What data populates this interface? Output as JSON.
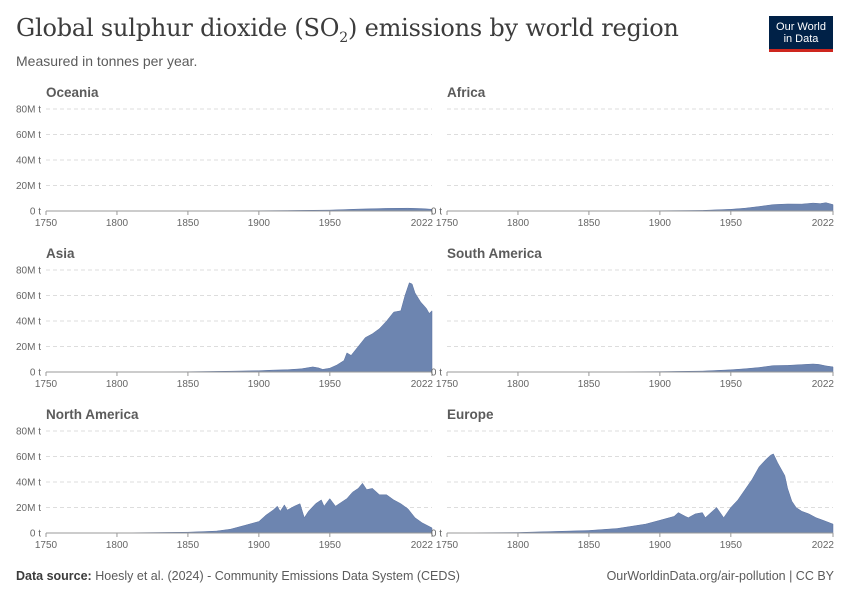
{
  "header": {
    "title_main": "Global sulphur dioxide (SO",
    "title_sub": "2",
    "title_end": ") emissions by world region",
    "subtitle": "Measured in tonnes per year.",
    "logo_line1": "Our World",
    "logo_line2": "in Data"
  },
  "footer": {
    "source_label": "Data source:",
    "source_text": "Hoesly et al. (2024) - Community Emissions Data System (CEDS)",
    "credit": "OurWorldinData.org/air-pollution | CC BY"
  },
  "chart_data": {
    "type": "area",
    "layout": "small-multiples",
    "x_ticks": [
      "1750",
      "1800",
      "1850",
      "1900",
      "1950",
      "2022"
    ],
    "y_ticks": [
      "0 t",
      "20M t",
      "40M t",
      "60M t",
      "80M t"
    ],
    "xlim": [
      1750,
      2022
    ],
    "ylim": [
      0,
      80000000
    ],
    "unit": "tonnes",
    "series": [
      {
        "name": "Oceania",
        "points": [
          [
            1750,
            0
          ],
          [
            1850,
            50000
          ],
          [
            1900,
            200000
          ],
          [
            1920,
            400000
          ],
          [
            1950,
            700000
          ],
          [
            1970,
            1500000
          ],
          [
            1990,
            2000000
          ],
          [
            2005,
            2200000
          ],
          [
            2015,
            1900000
          ],
          [
            2022,
            1300000
          ]
        ]
      },
      {
        "name": "Africa",
        "points": [
          [
            1750,
            0
          ],
          [
            1850,
            100000
          ],
          [
            1900,
            250000
          ],
          [
            1930,
            500000
          ],
          [
            1950,
            1300000
          ],
          [
            1960,
            2200000
          ],
          [
            1970,
            3500000
          ],
          [
            1980,
            5000000
          ],
          [
            1990,
            5500000
          ],
          [
            2000,
            5400000
          ],
          [
            2008,
            6200000
          ],
          [
            2013,
            5800000
          ],
          [
            2017,
            6500000
          ],
          [
            2022,
            5000000
          ]
        ]
      },
      {
        "name": "Asia",
        "points": [
          [
            1750,
            0
          ],
          [
            1850,
            200000
          ],
          [
            1880,
            600000
          ],
          [
            1900,
            1000000
          ],
          [
            1910,
            1500000
          ],
          [
            1920,
            1800000
          ],
          [
            1930,
            2500000
          ],
          [
            1938,
            4000000
          ],
          [
            1942,
            3200000
          ],
          [
            1945,
            2000000
          ],
          [
            1950,
            3000000
          ],
          [
            1955,
            5500000
          ],
          [
            1960,
            9000000
          ],
          [
            1962,
            15000000
          ],
          [
            1965,
            13000000
          ],
          [
            1970,
            20000000
          ],
          [
            1975,
            27000000
          ],
          [
            1980,
            30000000
          ],
          [
            1985,
            34000000
          ],
          [
            1990,
            40000000
          ],
          [
            1995,
            47000000
          ],
          [
            2000,
            48000000
          ],
          [
            2003,
            60000000
          ],
          [
            2006,
            70000000
          ],
          [
            2008,
            69000000
          ],
          [
            2010,
            62000000
          ],
          [
            2014,
            55000000
          ],
          [
            2018,
            50000000
          ],
          [
            2020,
            46000000
          ],
          [
            2022,
            48000000
          ]
        ]
      },
      {
        "name": "South America",
        "points": [
          [
            1750,
            0
          ],
          [
            1850,
            50000
          ],
          [
            1900,
            300000
          ],
          [
            1930,
            700000
          ],
          [
            1950,
            1700000
          ],
          [
            1960,
            2500000
          ],
          [
            1970,
            3500000
          ],
          [
            1980,
            5000000
          ],
          [
            1990,
            5200000
          ],
          [
            2000,
            5800000
          ],
          [
            2008,
            6300000
          ],
          [
            2012,
            6000000
          ],
          [
            2017,
            4800000
          ],
          [
            2022,
            4000000
          ]
        ]
      },
      {
        "name": "North America",
        "points": [
          [
            1750,
            0
          ],
          [
            1800,
            50000
          ],
          [
            1850,
            600000
          ],
          [
            1870,
            1500000
          ],
          [
            1880,
            3000000
          ],
          [
            1890,
            6000000
          ],
          [
            1900,
            9000000
          ],
          [
            1905,
            14000000
          ],
          [
            1910,
            18000000
          ],
          [
            1913,
            21000000
          ],
          [
            1915,
            17000000
          ],
          [
            1918,
            22000000
          ],
          [
            1920,
            18000000
          ],
          [
            1925,
            21000000
          ],
          [
            1929,
            23000000
          ],
          [
            1932,
            12000000
          ],
          [
            1935,
            17000000
          ],
          [
            1940,
            23000000
          ],
          [
            1944,
            26000000
          ],
          [
            1946,
            21000000
          ],
          [
            1950,
            27000000
          ],
          [
            1954,
            21000000
          ],
          [
            1958,
            24000000
          ],
          [
            1962,
            27000000
          ],
          [
            1966,
            32000000
          ],
          [
            1970,
            35000000
          ],
          [
            1973,
            39000000
          ],
          [
            1976,
            34000000
          ],
          [
            1980,
            35000000
          ],
          [
            1985,
            30000000
          ],
          [
            1990,
            30000000
          ],
          [
            1995,
            26000000
          ],
          [
            2000,
            23000000
          ],
          [
            2005,
            19000000
          ],
          [
            2010,
            12000000
          ],
          [
            2015,
            8000000
          ],
          [
            2022,
            4000000
          ]
        ]
      },
      {
        "name": "Europe",
        "points": [
          [
            1750,
            100000
          ],
          [
            1800,
            400000
          ],
          [
            1850,
            2000000
          ],
          [
            1870,
            3500000
          ],
          [
            1890,
            7000000
          ],
          [
            1900,
            10000000
          ],
          [
            1910,
            13000000
          ],
          [
            1913,
            16000000
          ],
          [
            1918,
            13000000
          ],
          [
            1920,
            12000000
          ],
          [
            1925,
            15000000
          ],
          [
            1930,
            16000000
          ],
          [
            1932,
            12000000
          ],
          [
            1935,
            15000000
          ],
          [
            1940,
            20000000
          ],
          [
            1945,
            12000000
          ],
          [
            1950,
            20000000
          ],
          [
            1955,
            26000000
          ],
          [
            1960,
            34000000
          ],
          [
            1965,
            42000000
          ],
          [
            1970,
            52000000
          ],
          [
            1975,
            58000000
          ],
          [
            1978,
            61000000
          ],
          [
            1980,
            62000000
          ],
          [
            1983,
            55000000
          ],
          [
            1988,
            45000000
          ],
          [
            1990,
            35000000
          ],
          [
            1993,
            25000000
          ],
          [
            1996,
            20000000
          ],
          [
            2000,
            17000000
          ],
          [
            2005,
            15000000
          ],
          [
            2010,
            12000000
          ],
          [
            2015,
            10000000
          ],
          [
            2022,
            7000000
          ]
        ]
      }
    ]
  }
}
